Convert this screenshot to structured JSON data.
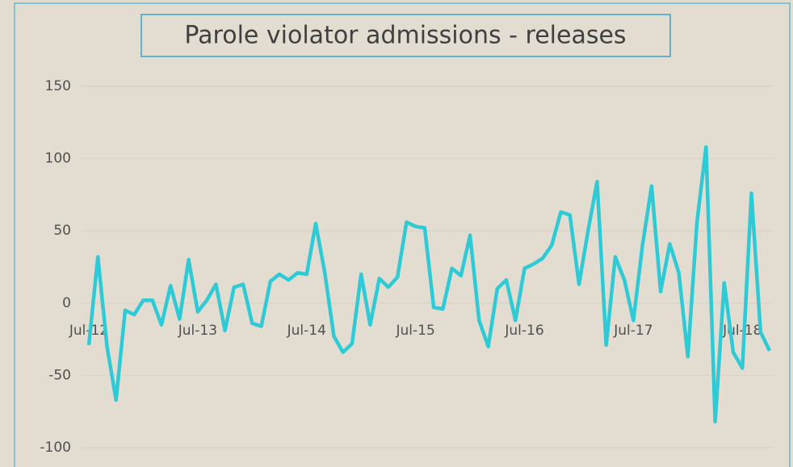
{
  "chart_data": {
    "type": "line",
    "title": "Parole violator admissions - releases",
    "categories": [
      "Jul-12",
      null,
      null,
      null,
      null,
      null,
      null,
      null,
      null,
      null,
      null,
      null,
      "Jul-13",
      null,
      null,
      null,
      null,
      null,
      null,
      null,
      null,
      null,
      null,
      null,
      "Jul-14",
      null,
      null,
      null,
      null,
      null,
      null,
      null,
      null,
      null,
      null,
      null,
      "Jul-15",
      null,
      null,
      null,
      null,
      null,
      null,
      null,
      null,
      null,
      null,
      null,
      "Jul-16",
      null,
      null,
      null,
      null,
      null,
      null,
      null,
      null,
      null,
      null,
      null,
      "Jul-17",
      null,
      null,
      null,
      null,
      null,
      null,
      null,
      null,
      null,
      null,
      null,
      "Jul-18",
      null,
      null,
      null
    ],
    "series": [
      {
        "name": "Parole violator admissions - releases",
        "color": "#2ecad6",
        "values": [
          -29,
          32,
          -30,
          -67,
          -5,
          -8,
          2,
          2,
          -15,
          12,
          -11,
          30,
          -6,
          2,
          13,
          -19,
          11,
          13,
          -14,
          -16,
          15,
          20,
          16,
          21,
          20,
          55,
          21,
          -23,
          -34,
          -28,
          20,
          -15,
          17,
          11,
          18,
          56,
          53,
          52,
          -3,
          -4,
          24,
          19,
          47,
          -12,
          -30,
          10,
          16,
          -12,
          24,
          27,
          31,
          40,
          63,
          61,
          13,
          50,
          84,
          -29,
          32,
          16,
          -12,
          40,
          81,
          8,
          41,
          21,
          -37,
          56,
          108,
          -82,
          14,
          -34,
          -45,
          76,
          -20,
          -33
        ]
      }
    ],
    "ylim": [
      -100,
      150
    ],
    "yticks": [
      -100,
      -50,
      0,
      50,
      100,
      150
    ],
    "grid": true
  }
}
